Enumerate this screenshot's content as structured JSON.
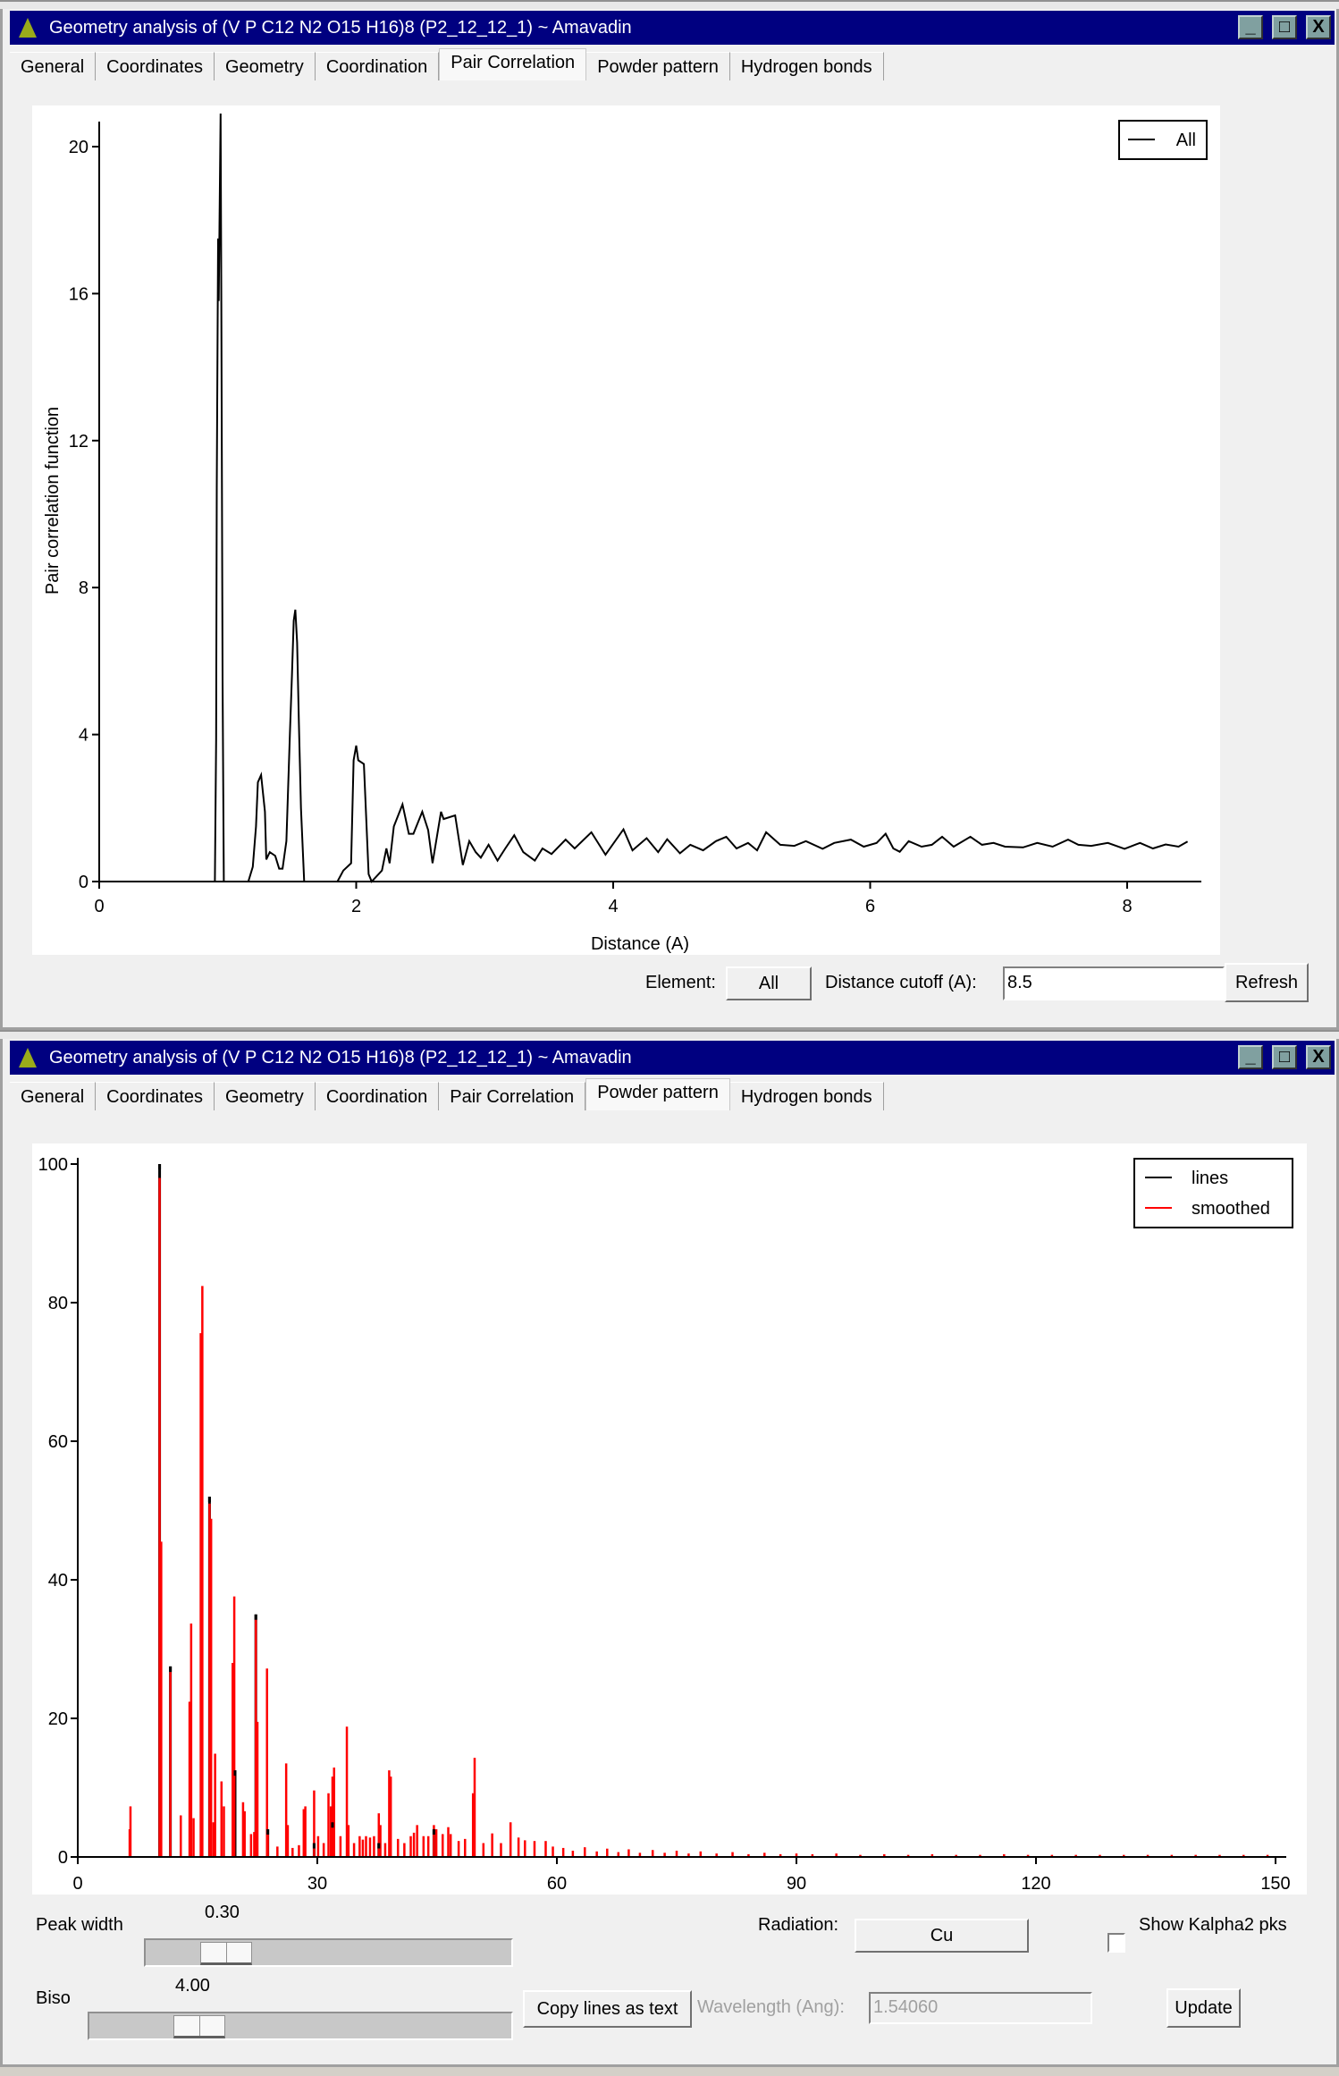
{
  "windows": [
    {
      "title": "Geometry analysis of (V P C12 N2 O15 H16)8  (P2_12_12_1) ~ Amavadin",
      "tabs": [
        "General",
        "Coordinates",
        "Geometry",
        "Coordination",
        "Pair Correlation",
        "Powder pattern",
        "Hydrogen bonds"
      ],
      "active_tab": "Pair Correlation",
      "controls": {
        "element_label": "Element:",
        "element_value": "All",
        "cutoff_label": "Distance cutoff (A):",
        "cutoff_value": "8.5",
        "refresh_label": "Refresh"
      }
    },
    {
      "title": "Geometry analysis of (V P C12 N2 O15 H16)8  (P2_12_12_1) ~ Amavadin",
      "tabs": [
        "General",
        "Coordinates",
        "Geometry",
        "Coordination",
        "Pair Correlation",
        "Powder pattern",
        "Hydrogen bonds"
      ],
      "active_tab": "Powder pattern",
      "controls": {
        "peak_width_label": "Peak width",
        "peak_width_value": "0.30",
        "peak_width": 0.3,
        "biso_label": "Biso",
        "biso_value": "4.00",
        "biso": 4.0,
        "radiation_label": "Radiation:",
        "radiation_value": "Cu",
        "kalpha2_label": "Show Kalpha2 pks",
        "kalpha2_checked": false,
        "copy_label": "Copy lines as text",
        "wavelength_label": "Wavelength (Ang):",
        "wavelength_value": "1.54060",
        "update_label": "Update"
      }
    }
  ],
  "window_buttons": {
    "minimize": "_",
    "maximize": "□",
    "close": "X"
  },
  "colors": {
    "titlebar": "#000080",
    "lines": "#000000",
    "smoothed": "#ff0000"
  },
  "chart_data": [
    {
      "type": "line",
      "xlabel": "Distance (A)",
      "ylabel": "Pair correlation function",
      "xlim": [
        0,
        8.5
      ],
      "ylim": [
        0,
        20.5
      ],
      "xticks": [
        "0",
        "2",
        "4",
        "6",
        "8"
      ],
      "yticks": [
        "0",
        "4",
        "8",
        "12",
        "16",
        "20"
      ],
      "legend": {
        "position": "top-right",
        "entries": [
          "All"
        ]
      },
      "series": [
        {
          "name": "All",
          "points": [
            [
              0.9,
              0
            ],
            [
              0.91,
              3.85
            ],
            [
              0.915,
              10.7
            ],
            [
              0.925,
              17.5
            ],
            [
              0.93,
              15.8
            ],
            [
              0.945,
              20.9
            ],
            [
              0.95,
              15.8
            ],
            [
              0.96,
              5.5
            ],
            [
              0.97,
              0
            ],
            [
              1.16,
              0
            ],
            [
              1.195,
              0.4
            ],
            [
              1.22,
              1.5
            ],
            [
              1.235,
              2.7
            ],
            [
              1.26,
              2.9
            ],
            [
              1.29,
              1.9
            ],
            [
              1.3,
              0.6
            ],
            [
              1.327,
              0.8
            ],
            [
              1.37,
              0.7
            ],
            [
              1.4,
              0.35
            ],
            [
              1.427,
              0.35
            ],
            [
              1.457,
              1.1
            ],
            [
              1.484,
              4.0
            ],
            [
              1.5,
              5.6
            ],
            [
              1.514,
              7.1
            ],
            [
              1.526,
              7.4
            ],
            [
              1.54,
              6.5
            ],
            [
              1.554,
              4.3
            ],
            [
              1.57,
              2.0
            ],
            [
              1.595,
              0
            ],
            [
              1.854,
              0
            ],
            [
              1.9,
              0.3
            ],
            [
              1.96,
              0.5
            ],
            [
              1.98,
              3.3
            ],
            [
              2.0,
              3.7
            ],
            [
              2.016,
              3.3
            ],
            [
              2.06,
              3.2
            ],
            [
              2.097,
              0.2
            ],
            [
              2.12,
              0
            ],
            [
              2.2,
              0.3
            ],
            [
              2.235,
              0.9
            ],
            [
              2.26,
              0.5
            ],
            [
              2.293,
              1.5
            ],
            [
              2.36,
              2.1
            ],
            [
              2.41,
              1.3
            ],
            [
              2.445,
              1.3
            ],
            [
              2.514,
              1.9
            ],
            [
              2.56,
              1.4
            ],
            [
              2.594,
              0.5
            ],
            [
              2.66,
              1.9
            ],
            [
              2.68,
              1.7
            ],
            [
              2.77,
              1.8
            ],
            [
              2.83,
              0.45
            ],
            [
              2.88,
              1.1
            ],
            [
              2.93,
              0.8
            ],
            [
              2.97,
              0.65
            ],
            [
              3.03,
              1.0
            ],
            [
              3.1,
              0.57
            ],
            [
              3.16,
              0.9
            ],
            [
              3.23,
              1.26
            ],
            [
              3.3,
              0.8
            ],
            [
              3.39,
              0.57
            ],
            [
              3.45,
              0.9
            ],
            [
              3.52,
              0.75
            ],
            [
              3.63,
              1.14
            ],
            [
              3.7,
              0.9
            ],
            [
              3.83,
              1.34
            ],
            [
              3.94,
              0.73
            ],
            [
              4.08,
              1.42
            ],
            [
              4.15,
              0.85
            ],
            [
              4.26,
              1.18
            ],
            [
              4.35,
              0.8
            ],
            [
              4.42,
              1.15
            ],
            [
              4.52,
              0.77
            ],
            [
              4.6,
              1.0
            ],
            [
              4.7,
              0.85
            ],
            [
              4.8,
              1.1
            ],
            [
              4.88,
              1.22
            ],
            [
              4.96,
              0.9
            ],
            [
              5.05,
              1.05
            ],
            [
              5.12,
              0.85
            ],
            [
              5.19,
              1.34
            ],
            [
              5.3,
              1.0
            ],
            [
              5.41,
              0.97
            ],
            [
              5.5,
              1.1
            ],
            [
              5.63,
              0.89
            ],
            [
              5.72,
              1.05
            ],
            [
              5.85,
              1.14
            ],
            [
              5.95,
              0.95
            ],
            [
              6.05,
              1.05
            ],
            [
              6.12,
              1.3
            ],
            [
              6.18,
              0.9
            ],
            [
              6.23,
              0.81
            ],
            [
              6.3,
              1.1
            ],
            [
              6.4,
              0.95
            ],
            [
              6.48,
              1.0
            ],
            [
              6.56,
              1.22
            ],
            [
              6.65,
              0.95
            ],
            [
              6.78,
              1.22
            ],
            [
              6.87,
              1.0
            ],
            [
              6.96,
              1.05
            ],
            [
              7.05,
              0.95
            ],
            [
              7.19,
              0.93
            ],
            [
              7.3,
              1.05
            ],
            [
              7.42,
              0.95
            ],
            [
              7.54,
              1.14
            ],
            [
              7.62,
              1.0
            ],
            [
              7.72,
              0.97
            ],
            [
              7.85,
              1.05
            ],
            [
              7.98,
              0.89
            ],
            [
              8.1,
              1.05
            ],
            [
              8.2,
              0.9
            ],
            [
              8.3,
              1.01
            ],
            [
              8.4,
              0.95
            ],
            [
              8.47,
              1.09
            ]
          ]
        }
      ]
    },
    {
      "type": "bar",
      "xlabel": "",
      "ylabel": "",
      "xlim": [
        0,
        150
      ],
      "ylim": [
        0,
        100
      ],
      "xticks": [
        "0",
        "30",
        "60",
        "90",
        "120",
        "150"
      ],
      "yticks": [
        "0",
        "20",
        "40",
        "60",
        "80",
        "100"
      ],
      "legend": {
        "position": "top-right",
        "entries": [
          "lines",
          "smoothed"
        ]
      },
      "series": [
        {
          "name": "lines",
          "points": [
            [
              10.25,
              100
            ],
            [
              11.6,
              27.5
            ],
            [
              16.5,
              52
            ],
            [
              19.7,
              12.5
            ],
            [
              22.3,
              35
            ],
            [
              23.8,
              4
            ],
            [
              31.9,
              5
            ],
            [
              44.6,
              4
            ],
            [
              29.6,
              2
            ],
            [
              37.7,
              2
            ]
          ]
        },
        {
          "name": "smoothed",
          "points": [
            [
              6.5,
              4
            ],
            [
              6.6,
              7.3
            ],
            [
              10.25,
              98
            ],
            [
              10.45,
              45.5
            ],
            [
              11.6,
              26.7
            ],
            [
              12.9,
              6
            ],
            [
              14.0,
              22.4
            ],
            [
              14.2,
              33.7
            ],
            [
              14.5,
              5.6
            ],
            [
              15.4,
              75.6
            ],
            [
              15.6,
              82.4
            ],
            [
              16.5,
              51
            ],
            [
              16.7,
              48.8
            ],
            [
              17.0,
              5
            ],
            [
              17.2,
              14.9
            ],
            [
              18.0,
              10.9
            ],
            [
              18.3,
              7.3
            ],
            [
              19.4,
              28
            ],
            [
              19.6,
              37.6
            ],
            [
              20.7,
              7.9
            ],
            [
              20.9,
              6.6
            ],
            [
              21.7,
              3.3
            ],
            [
              22.1,
              3.6
            ],
            [
              22.3,
              34.7
            ],
            [
              22.5,
              19.5
            ],
            [
              23.7,
              27.2
            ],
            [
              23.8,
              4
            ],
            [
              25.0,
              1.5
            ],
            [
              26.1,
              13.5
            ],
            [
              26.3,
              4.6
            ],
            [
              26.9,
              1.3
            ],
            [
              27.7,
              1.7
            ],
            [
              28.3,
              6.9
            ],
            [
              28.5,
              7.3
            ],
            [
              29.6,
              9.6
            ],
            [
              30.1,
              3
            ],
            [
              30.8,
              2
            ],
            [
              31.4,
              9.2
            ],
            [
              31.7,
              7.3
            ],
            [
              31.9,
              11.6
            ],
            [
              32.1,
              12.9
            ],
            [
              32.9,
              3
            ],
            [
              33.7,
              18.8
            ],
            [
              33.9,
              4.6
            ],
            [
              34.6,
              2
            ],
            [
              35.3,
              3
            ],
            [
              35.7,
              2.5
            ],
            [
              36.1,
              3
            ],
            [
              36.6,
              2.8
            ],
            [
              37.1,
              3
            ],
            [
              37.7,
              6.3
            ],
            [
              37.9,
              4.6
            ],
            [
              38.5,
              2
            ],
            [
              39.0,
              12.5
            ],
            [
              39.2,
              11.6
            ],
            [
              40.1,
              2.6
            ],
            [
              40.9,
              2
            ],
            [
              41.7,
              3
            ],
            [
              42.1,
              3.5
            ],
            [
              42.5,
              4.6
            ],
            [
              43.3,
              3
            ],
            [
              43.9,
              3
            ],
            [
              44.6,
              4.6
            ],
            [
              44.9,
              4
            ],
            [
              45.7,
              3.3
            ],
            [
              46.4,
              4.3
            ],
            [
              46.7,
              3.3
            ],
            [
              47.7,
              2.3
            ],
            [
              48.5,
              2.6
            ],
            [
              49.5,
              9.2
            ],
            [
              49.7,
              14.3
            ],
            [
              50.8,
              2
            ],
            [
              51.9,
              3.4
            ],
            [
              53,
              2
            ],
            [
              54.2,
              5
            ],
            [
              55.2,
              2.8
            ],
            [
              56.0,
              2.4
            ],
            [
              57.2,
              2.3
            ],
            [
              58.6,
              2.3
            ],
            [
              59.5,
              1.5
            ],
            [
              60.8,
              1.3
            ],
            [
              62,
              0.9
            ],
            [
              63.5,
              1.4
            ],
            [
              65,
              0.8
            ],
            [
              66.3,
              1.2
            ],
            [
              67.7,
              0.7
            ],
            [
              69,
              1.1
            ],
            [
              70.4,
              0.6
            ],
            [
              72,
              1.0
            ],
            [
              73.5,
              0.6
            ],
            [
              75,
              0.9
            ],
            [
              76.5,
              0.5
            ],
            [
              78,
              0.8
            ],
            [
              80,
              0.5
            ],
            [
              82,
              0.7
            ],
            [
              84,
              0.4
            ],
            [
              86,
              0.6
            ],
            [
              88,
              0.4
            ],
            [
              90,
              0.5
            ],
            [
              92,
              0.4
            ],
            [
              95,
              0.5
            ],
            [
              98,
              0.3
            ],
            [
              101,
              0.4
            ],
            [
              104,
              0.3
            ],
            [
              107,
              0.4
            ],
            [
              110,
              0.3
            ],
            [
              113,
              0.3
            ],
            [
              116,
              0.4
            ],
            [
              119,
              0.3
            ],
            [
              122,
              0.3
            ],
            [
              125,
              0.3
            ],
            [
              128,
              0.3
            ],
            [
              131,
              0.3
            ],
            [
              134,
              0.3
            ],
            [
              137,
              0.3
            ],
            [
              140,
              0.3
            ],
            [
              143,
              0.3
            ],
            [
              146,
              0.3
            ],
            [
              149,
              0.3
            ]
          ]
        }
      ]
    }
  ]
}
